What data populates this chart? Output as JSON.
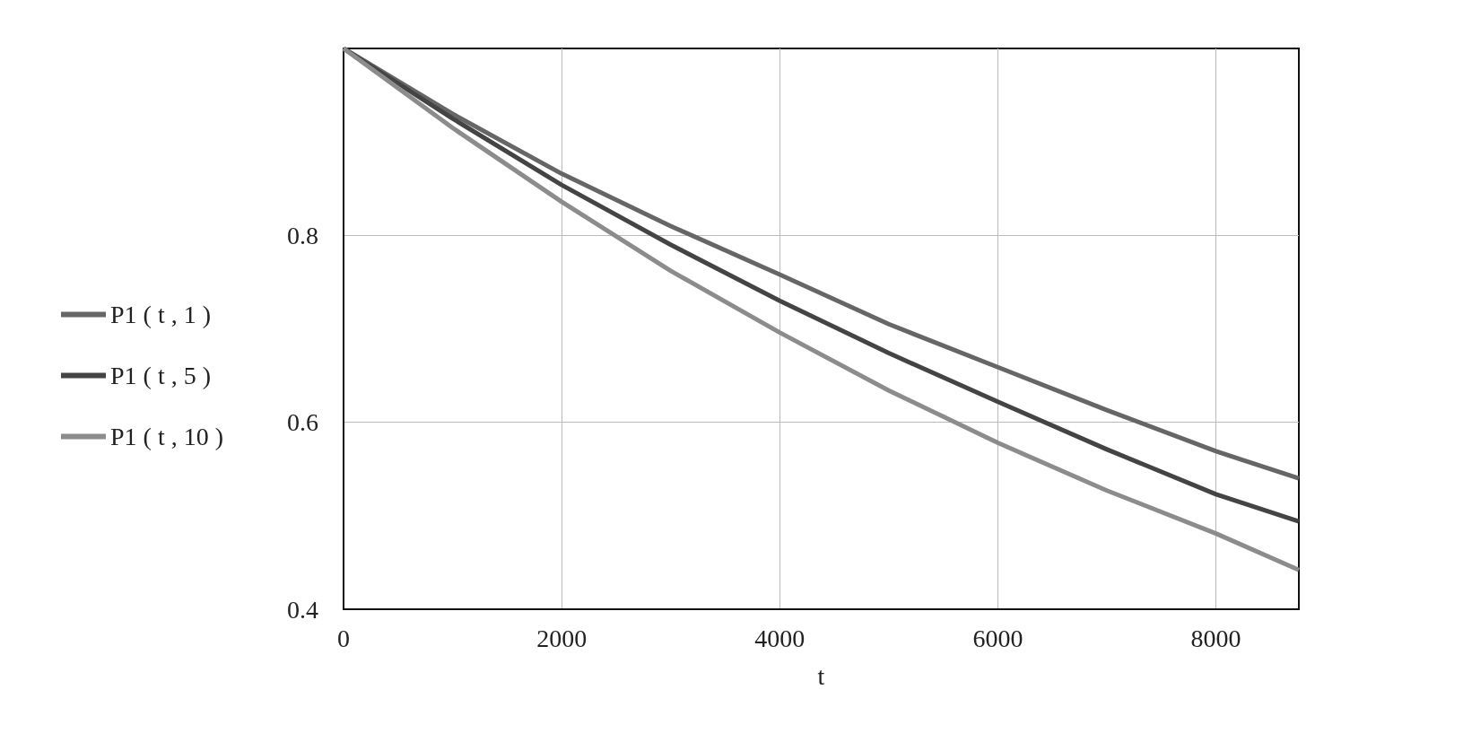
{
  "chart_data": {
    "type": "line",
    "xlabel": "t",
    "xlim": [
      0,
      8760
    ],
    "xticks": [
      0,
      2000,
      4000,
      6000,
      8000
    ],
    "ylim": [
      0.4,
      1.0
    ],
    "yticks": [
      0.4,
      0.6,
      0.8
    ],
    "grid": true,
    "legend": "left",
    "marker": "none",
    "line_style": "solid",
    "x": [
      0,
      1000,
      2000,
      3000,
      4000,
      5000,
      6000,
      7000,
      8000,
      8760
    ],
    "series": [
      {
        "name": "P1 ( t , 1 )",
        "color": "#666666",
        "values": [
          1.0,
          0.93,
          0.866,
          0.81,
          0.758,
          0.705,
          0.659,
          0.613,
          0.569,
          0.54
        ]
      },
      {
        "name": "P1 ( t , 5 )",
        "color": "#444444",
        "values": [
          1.0,
          0.925,
          0.854,
          0.79,
          0.73,
          0.674,
          0.622,
          0.571,
          0.523,
          0.494
        ]
      },
      {
        "name": "P1 ( t , 10 )",
        "color": "#8c8c8c",
        "values": [
          1.0,
          0.915,
          0.836,
          0.762,
          0.696,
          0.634,
          0.578,
          0.527,
          0.481,
          0.442
        ]
      }
    ]
  }
}
